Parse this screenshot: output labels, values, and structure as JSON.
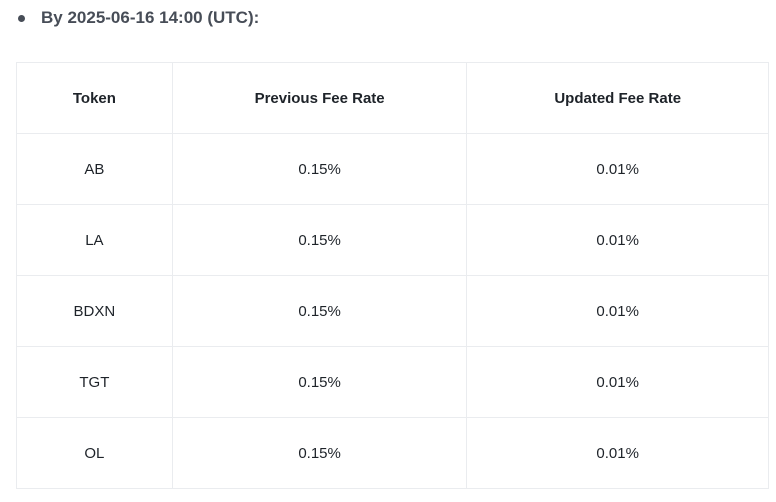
{
  "heading": "By 2025-06-16 14:00 (UTC):",
  "table": {
    "headers": [
      "Token",
      "Previous Fee Rate",
      "Updated Fee Rate"
    ],
    "rows": [
      [
        "AB",
        "0.15%",
        "0.01%"
      ],
      [
        "LA",
        "0.15%",
        "0.01%"
      ],
      [
        "BDXN",
        "0.15%",
        "0.01%"
      ],
      [
        "TGT",
        "0.15%",
        "0.01%"
      ],
      [
        "OL",
        "0.15%",
        "0.01%"
      ]
    ]
  }
}
